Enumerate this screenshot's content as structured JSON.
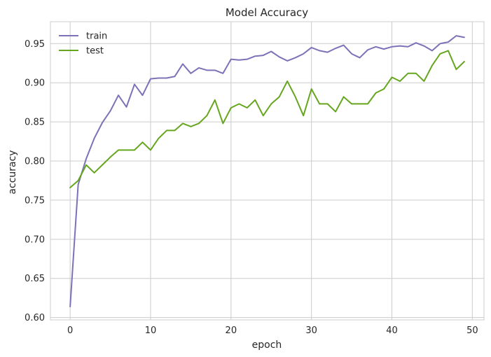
{
  "chart_data": {
    "type": "line",
    "title": "Model Accuracy",
    "xlabel": "epoch",
    "ylabel": "accuracy",
    "xlim": [
      -2.45,
      51.45
    ],
    "ylim": [
      0.597,
      0.978
    ],
    "xticks": [
      0,
      10,
      20,
      30,
      40,
      50
    ],
    "yticks": [
      0.6,
      0.65,
      0.7,
      0.75,
      0.8,
      0.85,
      0.9,
      0.95
    ],
    "ytick_labels": [
      "0.60",
      "0.65",
      "0.70",
      "0.75",
      "0.80",
      "0.85",
      "0.90",
      "0.95"
    ],
    "grid": true,
    "legend_position": "upper-left",
    "x": [
      0,
      1,
      2,
      3,
      4,
      5,
      6,
      7,
      8,
      9,
      10,
      11,
      12,
      13,
      14,
      15,
      16,
      17,
      18,
      19,
      20,
      21,
      22,
      23,
      24,
      25,
      26,
      27,
      28,
      29,
      30,
      31,
      32,
      33,
      34,
      35,
      36,
      37,
      38,
      39,
      40,
      41,
      42,
      43,
      44,
      45,
      46,
      47,
      48,
      49
    ],
    "series": [
      {
        "name": "train",
        "color": "#7b72b8",
        "values": [
          0.614,
          0.77,
          0.803,
          0.829,
          0.849,
          0.864,
          0.884,
          0.869,
          0.898,
          0.884,
          0.905,
          0.906,
          0.906,
          0.908,
          0.924,
          0.912,
          0.919,
          0.916,
          0.916,
          0.912,
          0.93,
          0.929,
          0.93,
          0.934,
          0.935,
          0.94,
          0.933,
          0.928,
          0.932,
          0.937,
          0.945,
          0.941,
          0.939,
          0.944,
          0.948,
          0.937,
          0.932,
          0.942,
          0.946,
          0.943,
          0.946,
          0.947,
          0.946,
          0.951,
          0.947,
          0.941,
          0.95,
          0.952,
          0.96,
          0.958
        ]
      },
      {
        "name": "test",
        "color": "#66a61e",
        "values": [
          0.766,
          0.775,
          0.795,
          0.785,
          0.795,
          0.805,
          0.814,
          0.814,
          0.814,
          0.824,
          0.814,
          0.829,
          0.839,
          0.839,
          0.848,
          0.844,
          0.848,
          0.858,
          0.878,
          0.848,
          0.868,
          0.873,
          0.868,
          0.878,
          0.858,
          0.873,
          0.882,
          0.902,
          0.882,
          0.858,
          0.892,
          0.873,
          0.873,
          0.863,
          0.882,
          0.873,
          0.873,
          0.873,
          0.887,
          0.892,
          0.907,
          0.902,
          0.912,
          0.912,
          0.902,
          0.922,
          0.937,
          0.941,
          0.917,
          0.927
        ]
      }
    ]
  }
}
